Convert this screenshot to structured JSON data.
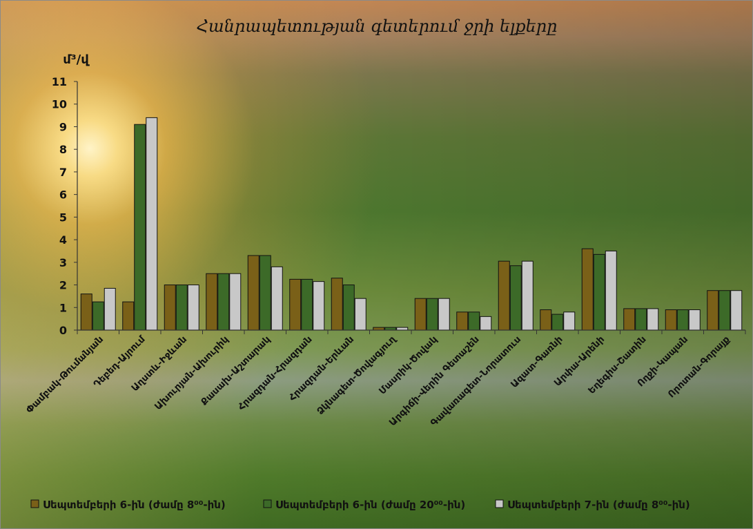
{
  "chart_data": {
    "type": "bar",
    "title": "Հանրապետության գետերում ջրի ելքերը",
    "ylabel": "մ³/վ",
    "ylim": [
      0,
      11
    ],
    "yticks": [
      0,
      1,
      2,
      3,
      4,
      5,
      6,
      7,
      8,
      9,
      10,
      11
    ],
    "grid": false,
    "legend_position": "bottom",
    "categories": [
      "Փամբակ-Թումանյան",
      "Դեբեդ-Այրում",
      "Աղստև-Իջևան",
      "Ախուրյան-Ախուրիկ",
      "Քասախ-Աշտարակ",
      "Հրազդան-Հրազդան",
      "Հրազդան-Երևան",
      "Ձկնագետ-Ծովագյուղ",
      "Մասրիկ-Ծովակ",
      "Արգիճի-Վերին Գետաշեն",
      "Գավառագետ-Նորատուս",
      "Ազատ-Գառնի",
      "Արփա-Արենի",
      "Եղեգիս-Շատին",
      "Ողջի-Կապան",
      "Որոտան-Գորայք"
    ],
    "series": [
      {
        "name": "Սեպտեմբերի 6-ին (ժամը 8⁰⁰-ին)",
        "color": "#7a6018",
        "values": [
          1.6,
          1.25,
          2.0,
          2.5,
          3.3,
          2.25,
          2.3,
          0.12,
          1.4,
          0.8,
          3.05,
          0.9,
          3.6,
          0.95,
          0.9,
          1.75
        ]
      },
      {
        "name": "Սեպտեմբերի 6-ին (ժամը 20⁰⁰-ին)",
        "color": "#3c6a28",
        "values": [
          1.25,
          9.1,
          2.0,
          2.5,
          3.3,
          2.25,
          2.0,
          0.12,
          1.4,
          0.8,
          2.85,
          0.7,
          3.35,
          0.95,
          0.9,
          1.75
        ]
      },
      {
        "name": "Սեպտեմբերի 7-ին (ժամը 8⁰⁰-ին)",
        "color": "#c8c8c8",
        "values": [
          1.85,
          9.4,
          2.0,
          2.5,
          2.8,
          2.15,
          1.4,
          0.12,
          1.4,
          0.6,
          3.05,
          0.8,
          3.5,
          0.95,
          0.9,
          1.75
        ]
      }
    ]
  }
}
